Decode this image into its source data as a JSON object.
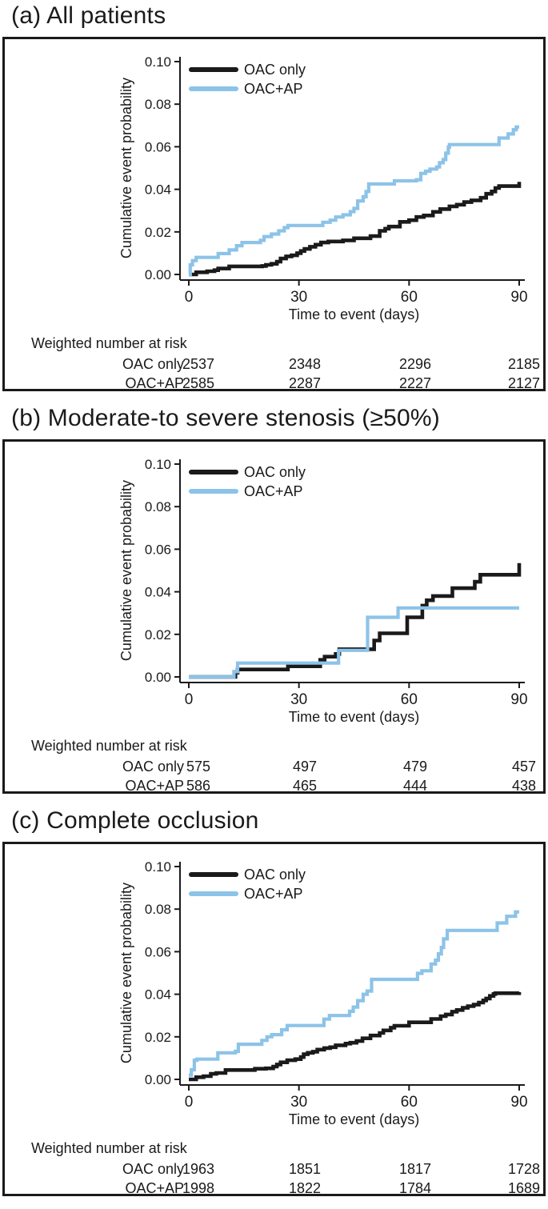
{
  "style_colors": {
    "line_black": "#1a1a1a",
    "line_blue": "#8cc3e8",
    "panel_border": "#1a1a1a",
    "background": "#ffffff"
  },
  "chart_data": [
    {
      "type": "line",
      "subtype": "kaplan-meier-step",
      "title": "(a) All patients",
      "xlabel": "Time to event (days)",
      "ylabel": "Cumulative event probability",
      "xlim": [
        0,
        90
      ],
      "ylim": [
        0,
        0.1
      ],
      "xticks": [
        "0",
        "30",
        "60",
        "90"
      ],
      "yticks": [
        "0.00",
        "0.02",
        "0.04",
        "0.06",
        "0.08",
        "0.10"
      ],
      "grid": "off",
      "legend_position": "top-left-inside",
      "series": [
        {
          "name": "OAC only",
          "color_key": "line_black",
          "steps": [
            [
              0,
              0
            ],
            [
              2,
              0.001
            ],
            [
              5,
              0.0015
            ],
            [
              7,
              0.002
            ],
            [
              8,
              0.0028
            ],
            [
              11,
              0.0038
            ],
            [
              20,
              0.004
            ],
            [
              21,
              0.0045
            ],
            [
              22.5,
              0.005
            ],
            [
              24,
              0.006
            ],
            [
              25,
              0.0075
            ],
            [
              26.5,
              0.0085
            ],
            [
              28,
              0.009
            ],
            [
              29.5,
              0.01
            ],
            [
              30.5,
              0.011
            ],
            [
              31.5,
              0.012
            ],
            [
              33,
              0.013
            ],
            [
              34.5,
              0.014
            ],
            [
              36,
              0.015
            ],
            [
              38,
              0.0155
            ],
            [
              42,
              0.016
            ],
            [
              45,
              0.017
            ],
            [
              49.5,
              0.018
            ],
            [
              52,
              0.0205
            ],
            [
              53.5,
              0.0215
            ],
            [
              54.5,
              0.0225
            ],
            [
              57.5,
              0.0247
            ],
            [
              60,
              0.0255
            ],
            [
              62,
              0.027
            ],
            [
              64,
              0.0277
            ],
            [
              66.5,
              0.0294
            ],
            [
              68.5,
              0.0307
            ],
            [
              71,
              0.032
            ],
            [
              73,
              0.0328
            ],
            [
              75,
              0.034
            ],
            [
              77,
              0.0348
            ],
            [
              79.5,
              0.036
            ],
            [
              81,
              0.0379
            ],
            [
              82.5,
              0.039
            ],
            [
              83.5,
              0.0406
            ],
            [
              84.5,
              0.0415
            ],
            [
              90,
              0.0435
            ]
          ]
        },
        {
          "name": "OAC+AP",
          "color_key": "line_blue",
          "steps": [
            [
              0,
              0
            ],
            [
              0.4,
              0.0045
            ],
            [
              1,
              0.0065
            ],
            [
              2,
              0.008
            ],
            [
              8,
              0.0098
            ],
            [
              11,
              0.0115
            ],
            [
              13,
              0.0135
            ],
            [
              14.5,
              0.015
            ],
            [
              19.5,
              0.016
            ],
            [
              20.5,
              0.0178
            ],
            [
              22.5,
              0.019
            ],
            [
              24.5,
              0.0205
            ],
            [
              26,
              0.022
            ],
            [
              27,
              0.023
            ],
            [
              36.5,
              0.0245
            ],
            [
              38.5,
              0.0255
            ],
            [
              40,
              0.027
            ],
            [
              42,
              0.028
            ],
            [
              44,
              0.0295
            ],
            [
              45,
              0.031
            ],
            [
              46,
              0.0345
            ],
            [
              47.5,
              0.0365
            ],
            [
              48.3,
              0.039
            ],
            [
              49,
              0.0425
            ],
            [
              56,
              0.044
            ],
            [
              62,
              0.0445
            ],
            [
              63.2,
              0.0475
            ],
            [
              64.5,
              0.0485
            ],
            [
              65.7,
              0.0495
            ],
            [
              67.5,
              0.0505
            ],
            [
              68.3,
              0.0525
            ],
            [
              69.3,
              0.054
            ],
            [
              70,
              0.057
            ],
            [
              70.7,
              0.0598
            ],
            [
              71,
              0.061
            ],
            [
              84.5,
              0.0641
            ],
            [
              87,
              0.066
            ],
            [
              88.4,
              0.068
            ],
            [
              89.2,
              0.0693
            ],
            [
              90,
              0.0693
            ]
          ]
        }
      ],
      "risk_table": {
        "title": "Weighted number at risk",
        "time_points": [
          0,
          30,
          60,
          90
        ],
        "rows": [
          {
            "label": "OAC only",
            "values": [
              "2537",
              "2348",
              "2296",
              "2185"
            ]
          },
          {
            "label": "OAC+AP",
            "values": [
              "2585",
              "2287",
              "2227",
              "2127"
            ]
          }
        ]
      }
    },
    {
      "type": "line",
      "subtype": "kaplan-meier-step",
      "title": "(b) Moderate-to severe stenosis (≥50%)",
      "xlabel": "Time to event (days)",
      "ylabel": "Cumulative event probability",
      "xlim": [
        0,
        90
      ],
      "ylim": [
        0,
        0.1
      ],
      "xticks": [
        "0",
        "30",
        "60",
        "90"
      ],
      "yticks": [
        "0.00",
        "0.02",
        "0.04",
        "0.06",
        "0.08",
        "0.10"
      ],
      "grid": "off",
      "legend_position": "top-left-inside",
      "series": [
        {
          "name": "OAC only",
          "color_key": "line_black",
          "steps": [
            [
              0,
              0
            ],
            [
              12.7,
              0.002
            ],
            [
              13.3,
              0.0035
            ],
            [
              27,
              0.005
            ],
            [
              35.8,
              0.008
            ],
            [
              37,
              0.0095
            ],
            [
              40,
              0.0108
            ],
            [
              41,
              0.013
            ],
            [
              50.5,
              0.0171
            ],
            [
              52,
              0.0205
            ],
            [
              59.5,
              0.028
            ],
            [
              63.6,
              0.0335
            ],
            [
              64.8,
              0.036
            ],
            [
              66.5,
              0.038
            ],
            [
              71.8,
              0.0417
            ],
            [
              77.9,
              0.0447
            ],
            [
              79.4,
              0.048
            ],
            [
              90,
              0.0535
            ]
          ]
        },
        {
          "name": "OAC+AP",
          "color_key": "line_blue",
          "steps": [
            [
              0,
              0
            ],
            [
              12.3,
              0.0025
            ],
            [
              13.3,
              0.0065
            ],
            [
              40.8,
              0.0125
            ],
            [
              48.7,
              0.028
            ],
            [
              57,
              0.0324
            ],
            [
              90,
              0.0324
            ]
          ]
        }
      ],
      "risk_table": {
        "title": "Weighted number at risk",
        "time_points": [
          0,
          30,
          60,
          90
        ],
        "rows": [
          {
            "label": "OAC only",
            "values": [
              "575",
              "497",
              "479",
              "457"
            ]
          },
          {
            "label": "OAC+AP",
            "values": [
              "586",
              "465",
              "444",
              "438"
            ]
          }
        ]
      }
    },
    {
      "type": "line",
      "subtype": "kaplan-meier-step",
      "title": "(c) Complete occlusion",
      "xlabel": "Time to event (days)",
      "ylabel": "Cumulative event probability",
      "xlim": [
        0,
        90
      ],
      "ylim": [
        0,
        0.1
      ],
      "xticks": [
        "0",
        "30",
        "60",
        "90"
      ],
      "yticks": [
        "0.00",
        "0.02",
        "0.04",
        "0.06",
        "0.08",
        "0.10"
      ],
      "grid": "off",
      "legend_position": "top-left-inside",
      "series": [
        {
          "name": "OAC only",
          "color_key": "line_black",
          "steps": [
            [
              0,
              0
            ],
            [
              2,
              0.001
            ],
            [
              4,
              0.0015
            ],
            [
              6,
              0.0026
            ],
            [
              7.5,
              0.003
            ],
            [
              10,
              0.0044
            ],
            [
              18,
              0.005
            ],
            [
              21,
              0.0052
            ],
            [
              23,
              0.006
            ],
            [
              24,
              0.007
            ],
            [
              25,
              0.008
            ],
            [
              26.8,
              0.009
            ],
            [
              29,
              0.0095
            ],
            [
              30.5,
              0.0105
            ],
            [
              31.3,
              0.0118
            ],
            [
              32.4,
              0.0125
            ],
            [
              33.8,
              0.013
            ],
            [
              35,
              0.014
            ],
            [
              36.9,
              0.0147
            ],
            [
              38.5,
              0.0151
            ],
            [
              40,
              0.016
            ],
            [
              42.7,
              0.0168
            ],
            [
              44,
              0.0172
            ],
            [
              45.7,
              0.018
            ],
            [
              47.3,
              0.0193
            ],
            [
              49.5,
              0.0206
            ],
            [
              52,
              0.0218
            ],
            [
              53,
              0.023
            ],
            [
              55,
              0.0243
            ],
            [
              56,
              0.0252
            ],
            [
              60,
              0.0268
            ],
            [
              66,
              0.0284
            ],
            [
              68.6,
              0.0297
            ],
            [
              70,
              0.0305
            ],
            [
              71.7,
              0.0318
            ],
            [
              73,
              0.0326
            ],
            [
              74.6,
              0.0336
            ],
            [
              76,
              0.0344
            ],
            [
              77.6,
              0.0351
            ],
            [
              79,
              0.0361
            ],
            [
              80.2,
              0.0371
            ],
            [
              81,
              0.038
            ],
            [
              82,
              0.0392
            ],
            [
              83,
              0.0401
            ],
            [
              83.5,
              0.0405
            ],
            [
              90,
              0.041
            ]
          ]
        },
        {
          "name": "OAC+AP",
          "color_key": "line_blue",
          "steps": [
            [
              0,
              0.002
            ],
            [
              0.7,
              0.0045
            ],
            [
              1.5,
              0.009
            ],
            [
              2.2,
              0.0095
            ],
            [
              7.9,
              0.0125
            ],
            [
              12.7,
              0.0132
            ],
            [
              13.5,
              0.0165
            ],
            [
              19.9,
              0.0183
            ],
            [
              21.3,
              0.02
            ],
            [
              22.6,
              0.021
            ],
            [
              25.3,
              0.0233
            ],
            [
              26.8,
              0.0253
            ],
            [
              36.8,
              0.0283
            ],
            [
              38.3,
              0.03
            ],
            [
              43.8,
              0.032
            ],
            [
              44.8,
              0.034
            ],
            [
              46,
              0.037
            ],
            [
              47.5,
              0.04
            ],
            [
              48.6,
              0.0415
            ],
            [
              49.8,
              0.047
            ],
            [
              62.3,
              0.0498
            ],
            [
              63.5,
              0.051
            ],
            [
              66,
              0.0542
            ],
            [
              67.2,
              0.056
            ],
            [
              68,
              0.059
            ],
            [
              68.8,
              0.062
            ],
            [
              69.4,
              0.066
            ],
            [
              70.4,
              0.07
            ],
            [
              84,
              0.0735
            ],
            [
              86.6,
              0.0766
            ],
            [
              89,
              0.0787
            ],
            [
              90,
              0.0787
            ]
          ]
        }
      ],
      "risk_table": {
        "title": "Weighted number at risk",
        "time_points": [
          0,
          30,
          60,
          90
        ],
        "rows": [
          {
            "label": "OAC only",
            "values": [
              "1963",
              "1851",
              "1817",
              "1728"
            ]
          },
          {
            "label": "OAC+AP",
            "values": [
              "1998",
              "1822",
              "1784",
              "1689"
            ]
          }
        ]
      }
    }
  ]
}
